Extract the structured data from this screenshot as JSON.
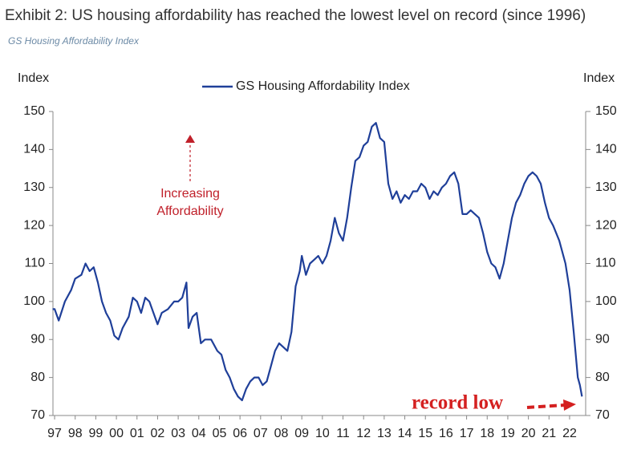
{
  "chart_data": {
    "type": "line",
    "title": "Exhibit 2: US housing affordability has reached the lowest level on record (since 1996)",
    "subtitle": "GS Housing Affordability Index",
    "y_label": "Index",
    "y2_label": "Index",
    "annotations": [
      {
        "lines": [
          "Increasing",
          "Affordability"
        ],
        "color": "#c0202a"
      },
      {
        "text": "record low",
        "color": "#d42020"
      }
    ],
    "x": [
      1996.9,
      1997.0,
      1997.2,
      1997.5,
      1997.8,
      1998.0,
      1998.3,
      1998.5,
      1998.7,
      1998.9,
      1999.1,
      1999.3,
      1999.5,
      1999.7,
      1999.9,
      2000.1,
      2000.3,
      2000.6,
      2000.8,
      2001.0,
      2001.2,
      2001.4,
      2001.6,
      2001.8,
      2002.0,
      2002.2,
      2002.5,
      2002.8,
      2003.0,
      2003.2,
      2003.4,
      2003.5,
      2003.7,
      2003.9,
      2004.1,
      2004.3,
      2004.6,
      2004.9,
      2005.1,
      2005.3,
      2005.5,
      2005.7,
      2005.9,
      2006.1,
      2006.3,
      2006.5,
      2006.7,
      2006.9,
      2007.1,
      2007.3,
      2007.5,
      2007.7,
      2007.9,
      2008.1,
      2008.3,
      2008.5,
      2008.7,
      2008.9,
      2009.0,
      2009.2,
      2009.4,
      2009.6,
      2009.8,
      2010.0,
      2010.2,
      2010.4,
      2010.6,
      2010.8,
      2011.0,
      2011.2,
      2011.4,
      2011.6,
      2011.8,
      2012.0,
      2012.2,
      2012.4,
      2012.6,
      2012.8,
      2013.0,
      2013.2,
      2013.4,
      2013.6,
      2013.8,
      2014.0,
      2014.2,
      2014.4,
      2014.6,
      2014.8,
      2015.0,
      2015.2,
      2015.4,
      2015.6,
      2015.8,
      2016.0,
      2016.2,
      2016.4,
      2016.6,
      2016.8,
      2017.0,
      2017.2,
      2017.4,
      2017.6,
      2017.8,
      2018.0,
      2018.2,
      2018.4,
      2018.6,
      2018.8,
      2019.0,
      2019.2,
      2019.4,
      2019.6,
      2019.8,
      2020.0,
      2020.2,
      2020.4,
      2020.6,
      2020.8,
      2021.0,
      2021.2,
      2021.5,
      2021.8,
      2022.0,
      2022.2,
      2022.4,
      2022.5,
      2022.6
    ],
    "series": [
      {
        "name": "GS Housing Affordability Index",
        "color": "#1f3f99",
        "values": [
          98,
          98,
          95,
          100,
          103,
          106,
          107,
          110,
          108,
          109,
          105,
          100,
          97,
          95,
          91,
          90,
          93,
          96,
          101,
          100,
          97,
          101,
          100,
          97,
          94,
          97,
          98,
          100,
          100,
          101,
          105,
          93,
          96,
          97,
          89,
          90,
          90,
          87,
          86,
          82,
          80,
          77,
          75,
          74,
          77,
          79,
          80,
          80,
          78,
          79,
          83,
          87,
          89,
          88,
          87,
          92,
          104,
          108,
          112,
          107,
          110,
          111,
          112,
          110,
          112,
          116,
          122,
          118,
          116,
          122,
          130,
          137,
          138,
          141,
          142,
          146,
          147,
          143,
          142,
          131,
          127,
          129,
          126,
          128,
          127,
          129,
          129,
          131,
          130,
          127,
          129,
          128,
          130,
          131,
          133,
          134,
          131,
          123,
          123,
          124,
          123,
          122,
          118,
          113,
          110,
          109,
          106,
          110,
          116,
          122,
          126,
          128,
          131,
          133,
          134,
          133,
          131,
          126,
          122,
          120,
          116,
          110,
          103,
          92,
          80,
          78,
          75
        ]
      }
    ],
    "xlim": [
      1996.92,
      2022.78
    ],
    "xticks": [
      {
        "value": 1997,
        "label": "97"
      },
      {
        "value": 1998,
        "label": "98"
      },
      {
        "value": 1999,
        "label": "99"
      },
      {
        "value": 2000,
        "label": "00"
      },
      {
        "value": 2001,
        "label": "01"
      },
      {
        "value": 2002,
        "label": "02"
      },
      {
        "value": 2003,
        "label": "03"
      },
      {
        "value": 2004,
        "label": "04"
      },
      {
        "value": 2005,
        "label": "05"
      },
      {
        "value": 2006,
        "label": "06"
      },
      {
        "value": 2007,
        "label": "07"
      },
      {
        "value": 2008,
        "label": "08"
      },
      {
        "value": 2009,
        "label": "09"
      },
      {
        "value": 2010,
        "label": "10"
      },
      {
        "value": 2011,
        "label": "11"
      },
      {
        "value": 2012,
        "label": "12"
      },
      {
        "value": 2013,
        "label": "13"
      },
      {
        "value": 2014,
        "label": "14"
      },
      {
        "value": 2015,
        "label": "15"
      },
      {
        "value": 2016,
        "label": "16"
      },
      {
        "value": 2017,
        "label": "17"
      },
      {
        "value": 2018,
        "label": "18"
      },
      {
        "value": 2019,
        "label": "19"
      },
      {
        "value": 2020,
        "label": "20"
      },
      {
        "value": 2021,
        "label": "21"
      },
      {
        "value": 2022,
        "label": "22"
      }
    ],
    "ylim": [
      70,
      150
    ],
    "yticks": [
      70,
      80,
      90,
      100,
      110,
      120,
      130,
      140,
      150
    ],
    "y2lim": [
      70,
      150
    ],
    "y2ticks": [
      70,
      80,
      90,
      100,
      110,
      120,
      130,
      140,
      150
    ],
    "legend": "top"
  }
}
